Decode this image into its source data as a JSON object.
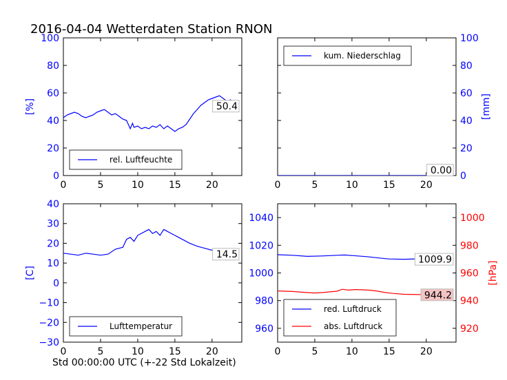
{
  "figure_title": "2016-04-04 Wetterdaten Station RNON",
  "x_label": "Std 00:00:00 UTC (+-22 Std Lokalzeit)",
  "colors": {
    "blue": "#0000ff",
    "red": "#ff0000",
    "black": "#000000",
    "value_box_red": "#f4c4c4"
  },
  "chart_data": [
    {
      "id": "humidity",
      "type": "line",
      "title": "",
      "xlabel": "",
      "ylabel": "[%]",
      "xlim": [
        0,
        24
      ],
      "ylim": [
        0,
        100
      ],
      "xticks": [
        "0",
        "5",
        "10",
        "15",
        "20"
      ],
      "yticks": [
        "0",
        "20",
        "40",
        "60",
        "80",
        "100"
      ],
      "legend_position": "lower-left",
      "series": [
        {
          "name": "rel. Luftfeuchte",
          "color": "#0000ff",
          "x": [
            0,
            0.5,
            1,
            1.5,
            2,
            2.5,
            3,
            3.5,
            4,
            4.5,
            5,
            5.5,
            6,
            6.5,
            7,
            7.5,
            8,
            8.5,
            9,
            9.3,
            9.5,
            10,
            10.5,
            11,
            11.5,
            12,
            12.5,
            13,
            13.5,
            14,
            14.5,
            15,
            15.5,
            16,
            16.5,
            17,
            17.5,
            18,
            18.5,
            19,
            19.5,
            20,
            20.5,
            21,
            21.5,
            22,
            22.5,
            23,
            23.3
          ],
          "y": [
            42,
            44,
            45,
            46,
            45,
            43,
            42,
            43,
            44,
            46,
            47,
            48,
            46,
            44,
            45,
            43,
            41,
            40,
            34,
            38,
            35,
            36,
            34,
            35,
            34,
            36,
            35,
            37,
            34,
            36,
            34,
            32,
            34,
            35,
            37,
            41,
            45,
            48,
            51,
            53,
            55,
            56,
            57,
            58,
            56,
            54,
            55,
            53,
            50.4
          ]
        }
      ],
      "value_box": "50.4"
    },
    {
      "id": "precipitation",
      "type": "line",
      "title": "",
      "xlabel": "",
      "ylabel": "[mm]",
      "xlim": [
        0,
        24
      ],
      "ylim": [
        0,
        100
      ],
      "xticks": [
        "0",
        "5",
        "10",
        "15",
        "20"
      ],
      "yticks": [
        "0",
        "20",
        "40",
        "60",
        "80",
        "100"
      ],
      "y_axis_side": "right",
      "legend_position": "top-left",
      "series": [
        {
          "name": "kum. Niederschlag",
          "color": "#0000ff",
          "x": [
            0,
            23.3
          ],
          "y": [
            0,
            0
          ]
        }
      ],
      "value_box": "0.00"
    },
    {
      "id": "temperature",
      "type": "line",
      "title": "",
      "xlabel": "Std 00:00:00 UTC (+-22 Std Lokalzeit)",
      "ylabel": "[C]",
      "xlim": [
        0,
        24
      ],
      "ylim": [
        -30,
        40
      ],
      "xticks": [
        "0",
        "5",
        "10",
        "15",
        "20"
      ],
      "yticks": [
        "−30",
        "−20",
        "−10",
        "0",
        "10",
        "20",
        "30",
        "40"
      ],
      "legend_position": "lower-left",
      "series": [
        {
          "name": "Lufttemperatur",
          "color": "#0000ff",
          "x": [
            0,
            1,
            2,
            3,
            4,
            5,
            6,
            7,
            8,
            8.5,
            9,
            9.5,
            10,
            11,
            11.5,
            12,
            12.5,
            13,
            13.5,
            14,
            14.5,
            15,
            15.5,
            16,
            17,
            18,
            19,
            20,
            21,
            22,
            23,
            23.3
          ],
          "y": [
            15,
            14.5,
            14,
            15,
            14.5,
            14,
            14.5,
            17,
            18,
            22,
            23,
            21,
            24,
            26,
            27,
            25,
            26,
            24,
            27,
            26,
            25,
            24,
            23,
            22,
            20,
            18.5,
            17.5,
            16.5,
            16,
            15,
            14.5,
            14.5
          ]
        }
      ],
      "value_box": "14.5"
    },
    {
      "id": "pressure",
      "type": "line",
      "title": "",
      "xlabel": "",
      "ylabel": "",
      "ylabel_right": "[hPa]",
      "xlim": [
        0,
        24
      ],
      "ylim": [
        950,
        1050
      ],
      "ylim_right": [
        910,
        1010
      ],
      "xticks": [
        "0",
        "5",
        "10",
        "15",
        "20"
      ],
      "yticks": [
        "960",
        "980",
        "1000",
        "1020",
        "1040"
      ],
      "yticks_right": [
        "920",
        "940",
        "960",
        "980",
        "1000"
      ],
      "legend_position": "lower-left",
      "series": [
        {
          "name": "red. Luftdruck",
          "color": "#0000ff",
          "axis": "left",
          "x": [
            0,
            2,
            4,
            6,
            8,
            9,
            10,
            12,
            14,
            15,
            17,
            19,
            21,
            23.3
          ],
          "y": [
            1013.2,
            1012.8,
            1012.0,
            1012.3,
            1012.8,
            1013.0,
            1012.6,
            1011.8,
            1010.6,
            1010.1,
            1009.9,
            1010.2,
            1010.6,
            1009.9
          ]
        },
        {
          "name": "abs. Luftdruck",
          "color": "#ff0000",
          "axis": "right",
          "x": [
            0,
            2,
            4,
            5,
            6,
            7,
            8,
            8.7,
            9.5,
            10.5,
            11.5,
            12.5,
            13.5,
            14.5,
            15.5,
            17,
            19,
            21,
            23.3
          ],
          "y": [
            947,
            946.6,
            945.8,
            945.5,
            945.8,
            946.3,
            946.8,
            948.2,
            947.6,
            948.0,
            947.8,
            947.5,
            946.8,
            945.8,
            945.2,
            944.6,
            944.4,
            944.3,
            944.2
          ]
        }
      ],
      "value_box_left": "1009.9",
      "value_box_right": "944.2"
    }
  ]
}
